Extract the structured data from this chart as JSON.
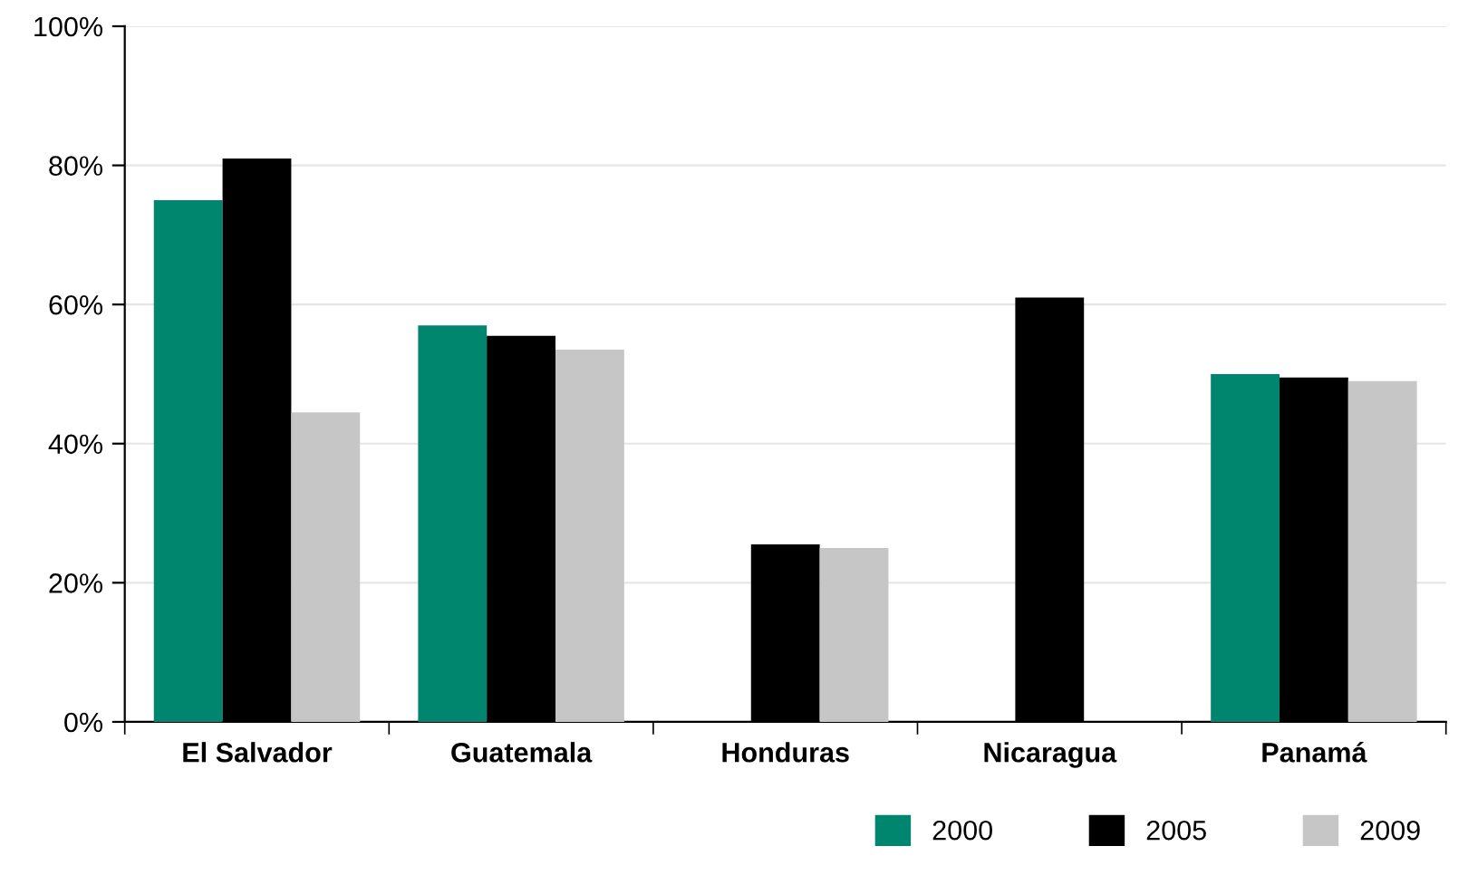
{
  "chart_data": {
    "type": "bar",
    "categories": [
      "El Salvador",
      "Guatemala",
      "Honduras",
      "Nicaragua",
      "Panamá"
    ],
    "series": [
      {
        "name": "2000",
        "color": "#00866f",
        "values": [
          75,
          57,
          null,
          null,
          50
        ]
      },
      {
        "name": "2005",
        "color": "#000000",
        "values": [
          81,
          55.5,
          25.5,
          61,
          49.5
        ]
      },
      {
        "name": "2009",
        "color": "#c6c6c6",
        "values": [
          44.5,
          53.5,
          25,
          null,
          49
        ]
      }
    ],
    "ylim": [
      0,
      100
    ],
    "yticks": [
      {
        "value": 0,
        "label": "0%"
      },
      {
        "value": 20,
        "label": "20%"
      },
      {
        "value": 40,
        "label": "40%"
      },
      {
        "value": 60,
        "label": "60%"
      },
      {
        "value": 80,
        "label": "80%"
      },
      {
        "value": 100,
        "label": "100%"
      }
    ],
    "grid": "y",
    "legend": "bottom right"
  }
}
